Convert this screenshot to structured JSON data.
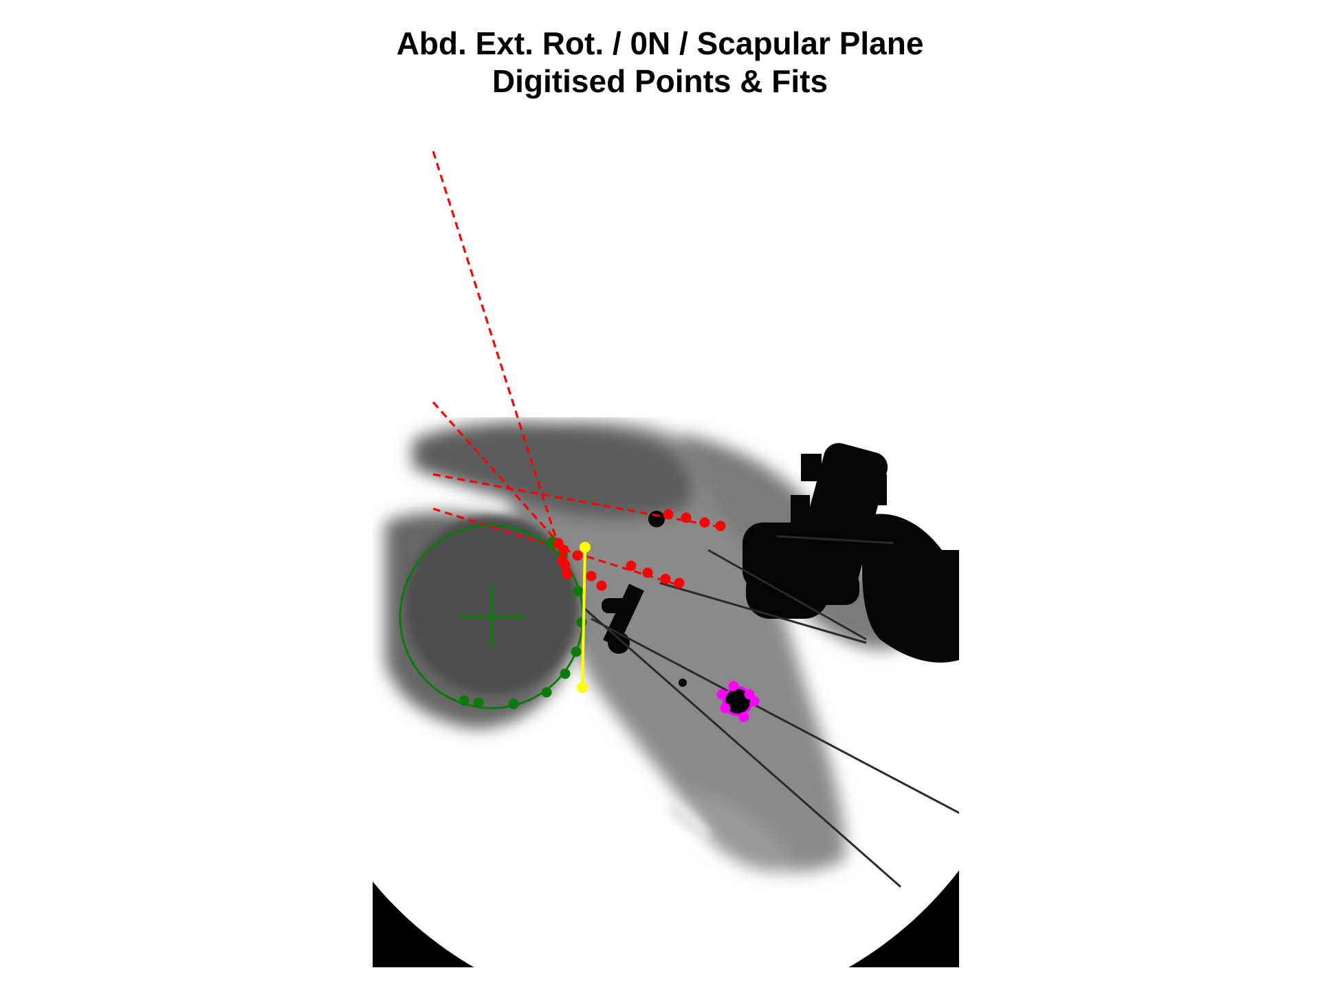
{
  "figure": {
    "title_line1": "Abd. Ext. Rot. / 0N / Scapular Plane",
    "title_line2": "Digitised Points & Fits"
  },
  "colors": {
    "background": "#ffffff",
    "image_border": "#000000",
    "fluoro_field": "#ffffff",
    "tissue": "#6b6b6b",
    "hardware": "#050505",
    "humeral_head_fit": "#0a7a0a",
    "glenoid_points": "#ff0000",
    "glenoid_line": "#ffff00",
    "marker_points": "#ff00ff"
  },
  "overlays": {
    "humeral_head": {
      "name": "green-circle-fit",
      "point_count": 10
    },
    "glenoid_axis": {
      "name": "yellow-line"
    },
    "scapula_lines": {
      "name": "red-dashed-lines",
      "count": 4
    },
    "marker": {
      "name": "magenta-marker",
      "point_count": 6
    }
  }
}
